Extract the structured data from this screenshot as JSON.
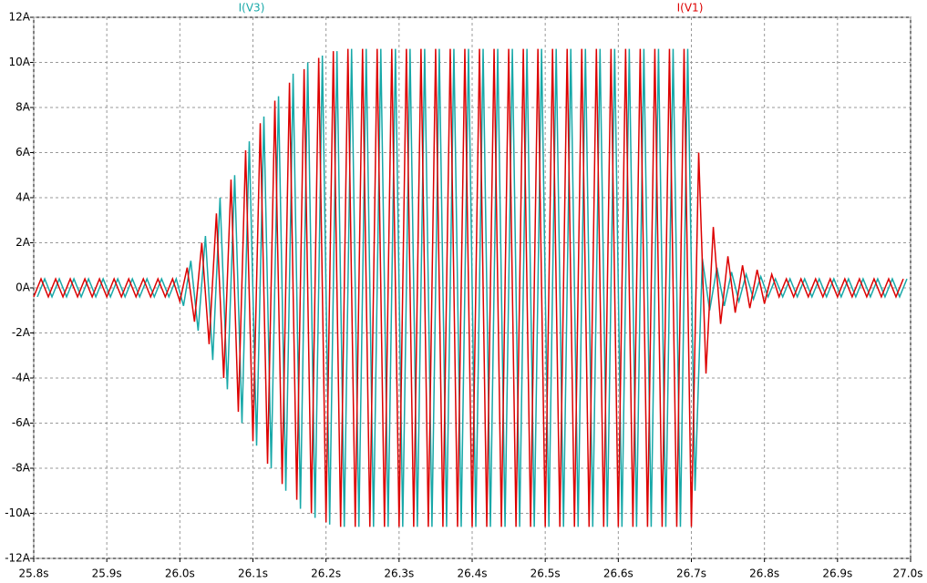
{
  "chart_data": {
    "type": "line",
    "ylim": [
      -12,
      12
    ],
    "yticks": [
      {
        "value": -12,
        "label": "-12A"
      },
      {
        "value": -10,
        "label": "-10A"
      },
      {
        "value": -8,
        "label": "-8A"
      },
      {
        "value": -6,
        "label": "-6A"
      },
      {
        "value": -4,
        "label": "-4A"
      },
      {
        "value": -2,
        "label": "-2A"
      },
      {
        "value": 0,
        "label": "0A"
      },
      {
        "value": 2,
        "label": "2A"
      },
      {
        "value": 4,
        "label": "4A"
      },
      {
        "value": 6,
        "label": "6A"
      },
      {
        "value": 8,
        "label": "8A"
      },
      {
        "value": 10,
        "label": "10A"
      },
      {
        "value": 12,
        "label": "12A"
      }
    ],
    "xlim": [
      25.8,
      27.0
    ],
    "xticks": [
      {
        "value": 25.8,
        "label": "25.8s"
      },
      {
        "value": 25.9,
        "label": "25.9s"
      },
      {
        "value": 26.0,
        "label": "26.0s"
      },
      {
        "value": 26.1,
        "label": "26.1s"
      },
      {
        "value": 26.2,
        "label": "26.2s"
      },
      {
        "value": 26.3,
        "label": "26.3s"
      },
      {
        "value": 26.4,
        "label": "26.4s"
      },
      {
        "value": 26.5,
        "label": "26.5s"
      },
      {
        "value": 26.6,
        "label": "26.6s"
      },
      {
        "value": 26.7,
        "label": "26.7s"
      },
      {
        "value": 26.8,
        "label": "26.8s"
      },
      {
        "value": 26.9,
        "label": "26.9s"
      },
      {
        "value": 27.0,
        "label": "27.0s"
      }
    ],
    "grid": true,
    "series": [
      {
        "name": "I(V3)",
        "color": "#17a8a8",
        "x": [
          25.805,
          25.815,
          25.825,
          25.835,
          25.845,
          25.855,
          25.865,
          25.875,
          25.885,
          25.895,
          25.905,
          25.915,
          25.925,
          25.935,
          25.945,
          25.955,
          25.965,
          25.975,
          25.985,
          25.995,
          26.005,
          26.015,
          26.025,
          26.035,
          26.045,
          26.055,
          26.065,
          26.075,
          26.085,
          26.095,
          26.105,
          26.115,
          26.125,
          26.135,
          26.145,
          26.155,
          26.165,
          26.175,
          26.185,
          26.195,
          26.205,
          26.215,
          26.225,
          26.235,
          26.245,
          26.255,
          26.265,
          26.275,
          26.285,
          26.295,
          26.305,
          26.315,
          26.325,
          26.335,
          26.345,
          26.355,
          26.365,
          26.375,
          26.385,
          26.395,
          26.405,
          26.415,
          26.425,
          26.435,
          26.445,
          26.455,
          26.465,
          26.475,
          26.485,
          26.495,
          26.505,
          26.515,
          26.525,
          26.535,
          26.545,
          26.555,
          26.565,
          26.575,
          26.585,
          26.595,
          26.605,
          26.615,
          26.625,
          26.635,
          26.645,
          26.655,
          26.665,
          26.675,
          26.685,
          26.695,
          26.705,
          26.715,
          26.725,
          26.735,
          26.745,
          26.755,
          26.765,
          26.775,
          26.785,
          26.795,
          26.805,
          26.815,
          26.825,
          26.835,
          26.845,
          26.855,
          26.865,
          26.875,
          26.885,
          26.895,
          26.905,
          26.915,
          26.925,
          26.935,
          26.945,
          26.955,
          26.965,
          26.975,
          26.985,
          26.995
        ],
        "values": [
          -0.4,
          0.4,
          -0.4,
          0.4,
          -0.4,
          0.4,
          -0.4,
          0.4,
          -0.4,
          0.4,
          -0.4,
          0.4,
          -0.4,
          0.4,
          -0.4,
          0.4,
          -0.4,
          0.4,
          -0.4,
          0.4,
          -0.8,
          1.2,
          -1.9,
          2.3,
          -3.2,
          4.0,
          -4.5,
          5.0,
          -6.0,
          6.5,
          -7.0,
          7.6,
          -8.0,
          8.5,
          -9.0,
          9.5,
          -9.8,
          10.0,
          -10.2,
          10.3,
          -10.5,
          10.5,
          -10.6,
          10.6,
          -10.6,
          10.6,
          -10.6,
          10.6,
          -10.6,
          10.6,
          -10.6,
          10.6,
          -10.6,
          10.6,
          -10.6,
          10.6,
          -10.6,
          10.6,
          -10.6,
          10.6,
          -10.6,
          10.6,
          -10.6,
          10.6,
          -10.6,
          10.6,
          -10.6,
          10.6,
          -10.6,
          10.6,
          -10.6,
          10.6,
          -10.6,
          10.6,
          -10.6,
          10.6,
          -10.6,
          10.6,
          -10.6,
          10.6,
          -10.6,
          10.6,
          -10.6,
          10.6,
          -10.6,
          10.6,
          -10.6,
          10.6,
          -10.6,
          10.6,
          -9.0,
          1.3,
          -1.0,
          0.9,
          -0.8,
          0.7,
          -0.6,
          0.6,
          -0.5,
          0.5,
          -0.4,
          0.4,
          -0.4,
          0.4,
          -0.4,
          0.4,
          -0.4,
          0.4,
          -0.4,
          0.4,
          -0.4,
          0.4,
          -0.4,
          0.4,
          -0.4,
          0.4,
          -0.4,
          0.4,
          -0.4,
          0.4
        ]
      },
      {
        "name": "I(V1)",
        "color": "#dd0000",
        "x": [
          25.8,
          25.81,
          25.82,
          25.83,
          25.84,
          25.85,
          25.86,
          25.87,
          25.88,
          25.89,
          25.9,
          25.91,
          25.92,
          25.93,
          25.94,
          25.95,
          25.96,
          25.97,
          25.98,
          25.99,
          26.0,
          26.01,
          26.02,
          26.03,
          26.04,
          26.05,
          26.06,
          26.07,
          26.08,
          26.09,
          26.1,
          26.11,
          26.12,
          26.13,
          26.14,
          26.15,
          26.16,
          26.17,
          26.18,
          26.19,
          26.2,
          26.21,
          26.22,
          26.23,
          26.24,
          26.25,
          26.26,
          26.27,
          26.28,
          26.29,
          26.3,
          26.31,
          26.32,
          26.33,
          26.34,
          26.35,
          26.36,
          26.37,
          26.38,
          26.39,
          26.4,
          26.41,
          26.42,
          26.43,
          26.44,
          26.45,
          26.46,
          26.47,
          26.48,
          26.49,
          26.5,
          26.51,
          26.52,
          26.53,
          26.54,
          26.55,
          26.56,
          26.57,
          26.58,
          26.59,
          26.6,
          26.61,
          26.62,
          26.63,
          26.64,
          26.65,
          26.66,
          26.67,
          26.68,
          26.69,
          26.7,
          26.71,
          26.72,
          26.73,
          26.74,
          26.75,
          26.76,
          26.77,
          26.78,
          26.79,
          26.8,
          26.81,
          26.82,
          26.83,
          26.84,
          26.85,
          26.86,
          26.87,
          26.88,
          26.89,
          26.9,
          26.91,
          26.92,
          26.93,
          26.94,
          26.95,
          26.96,
          26.97,
          26.98,
          26.99
        ],
        "values": [
          -0.4,
          0.4,
          -0.4,
          0.4,
          -0.4,
          0.4,
          -0.4,
          0.4,
          -0.4,
          0.4,
          -0.4,
          0.4,
          -0.4,
          0.4,
          -0.4,
          0.4,
          -0.4,
          0.4,
          -0.4,
          0.4,
          -0.6,
          0.9,
          -1.5,
          2.0,
          -2.5,
          3.3,
          -4.0,
          4.8,
          -5.5,
          6.1,
          -6.8,
          7.3,
          -7.8,
          8.3,
          -8.7,
          9.1,
          -9.4,
          9.7,
          -10.0,
          10.2,
          -10.4,
          10.5,
          -10.6,
          10.6,
          -10.6,
          10.6,
          -10.6,
          10.6,
          -10.6,
          10.6,
          -10.6,
          10.6,
          -10.6,
          10.6,
          -10.6,
          10.6,
          -10.6,
          10.6,
          -10.6,
          10.6,
          -10.6,
          10.6,
          -10.6,
          10.6,
          -10.6,
          10.6,
          -10.6,
          10.6,
          -10.6,
          10.6,
          -10.6,
          10.6,
          -10.6,
          10.6,
          -10.6,
          10.6,
          -10.6,
          10.6,
          -10.6,
          10.6,
          -10.6,
          10.6,
          -10.6,
          10.6,
          -10.6,
          10.6,
          -10.6,
          10.6,
          -10.6,
          10.6,
          -10.6,
          6.0,
          -3.8,
          2.7,
          -1.6,
          1.4,
          -1.1,
          1.0,
          -0.9,
          0.8,
          -0.7,
          0.6,
          -0.4,
          0.4,
          -0.4,
          0.4,
          -0.4,
          0.4,
          -0.4,
          0.4,
          -0.4,
          0.4,
          -0.4,
          0.4,
          -0.4,
          0.4,
          -0.4,
          0.4,
          -0.4,
          0.4
        ]
      }
    ]
  }
}
